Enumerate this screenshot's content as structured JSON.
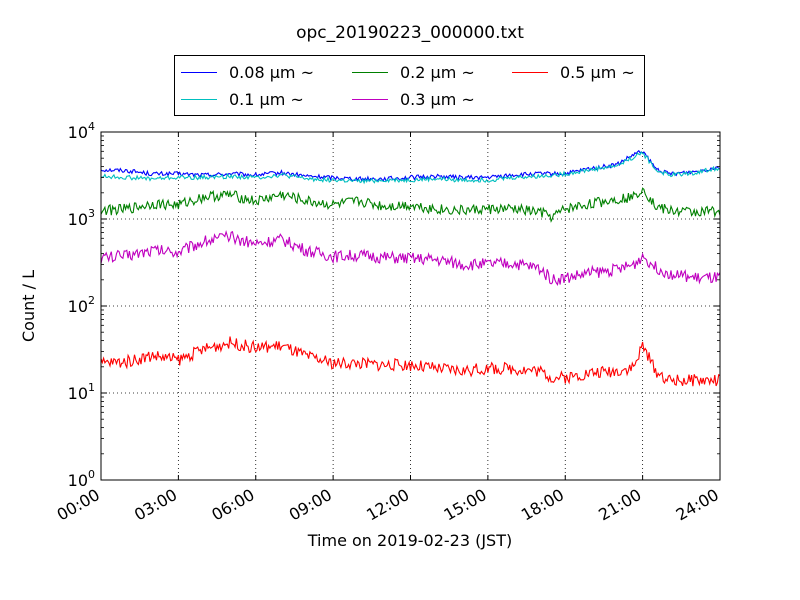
{
  "chart_data": {
    "type": "line",
    "title": "opc_20190223_000000.txt",
    "xlabel": "Time on 2019-02-23 (JST)",
    "ylabel": "Count / L",
    "yscale": "log",
    "ylim": [
      1,
      10000
    ],
    "xlim": [
      "00:00",
      "24:00"
    ],
    "x_ticks": [
      "00:00",
      "03:00",
      "06:00",
      "09:00",
      "12:00",
      "15:00",
      "18:00",
      "21:00",
      "24:00"
    ],
    "y_ticks": [
      {
        "base": "10",
        "exp": "0"
      },
      {
        "base": "10",
        "exp": "1"
      },
      {
        "base": "10",
        "exp": "2"
      },
      {
        "base": "10",
        "exp": "3"
      },
      {
        "base": "10",
        "exp": "4"
      }
    ],
    "grid": true,
    "legend_position": "top-center",
    "x": [
      "00:00",
      "01:00",
      "02:00",
      "03:00",
      "04:00",
      "05:00",
      "06:00",
      "07:00",
      "08:00",
      "09:00",
      "10:00",
      "11:00",
      "12:00",
      "13:00",
      "14:00",
      "15:00",
      "16:00",
      "17:00",
      "17:30",
      "18:00",
      "19:00",
      "20:00",
      "20:40",
      "21:00",
      "21:30",
      "22:00",
      "23:00",
      "24:00"
    ],
    "series": [
      {
        "name": "0.08 μm ~",
        "color": "#0000ff",
        "values": [
          3700,
          3600,
          3300,
          3300,
          3200,
          3300,
          3200,
          3400,
          3100,
          3000,
          2900,
          2900,
          3000,
          3100,
          3000,
          3000,
          3200,
          3300,
          3300,
          3300,
          3800,
          4200,
          5500,
          6000,
          3800,
          3300,
          3500,
          4000
        ]
      },
      {
        "name": "0.1 μm ~",
        "color": "#00bfbf",
        "values": [
          3100,
          3000,
          2900,
          3000,
          3000,
          3100,
          3000,
          3200,
          2900,
          2800,
          2700,
          2800,
          2800,
          2900,
          2800,
          2800,
          3000,
          3100,
          3200,
          3300,
          3700,
          4100,
          5200,
          5800,
          3700,
          3200,
          3400,
          3900
        ]
      },
      {
        "name": "0.2 μm ~",
        "color": "#008000",
        "values": [
          1250,
          1300,
          1500,
          1450,
          1800,
          1900,
          1600,
          1900,
          1600,
          1450,
          1600,
          1400,
          1450,
          1300,
          1250,
          1300,
          1300,
          1200,
          1050,
          1300,
          1500,
          1700,
          1800,
          2300,
          1400,
          1250,
          1200,
          1250
        ]
      },
      {
        "name": "0.3 μm ~",
        "color": "#bf00bf",
        "values": [
          360,
          380,
          440,
          420,
          560,
          620,
          520,
          580,
          430,
          370,
          380,
          360,
          350,
          340,
          300,
          300,
          310,
          270,
          200,
          210,
          240,
          260,
          300,
          380,
          280,
          240,
          210,
          210
        ]
      },
      {
        "name": "0.5 μm ~",
        "color": "#ff0000",
        "values": [
          22,
          23,
          27,
          24,
          32,
          38,
          33,
          35,
          26,
          22,
          22,
          21,
          21,
          19,
          18,
          19,
          19,
          18,
          15,
          15,
          17,
          18,
          20,
          35,
          18,
          14,
          14,
          14
        ]
      }
    ]
  }
}
